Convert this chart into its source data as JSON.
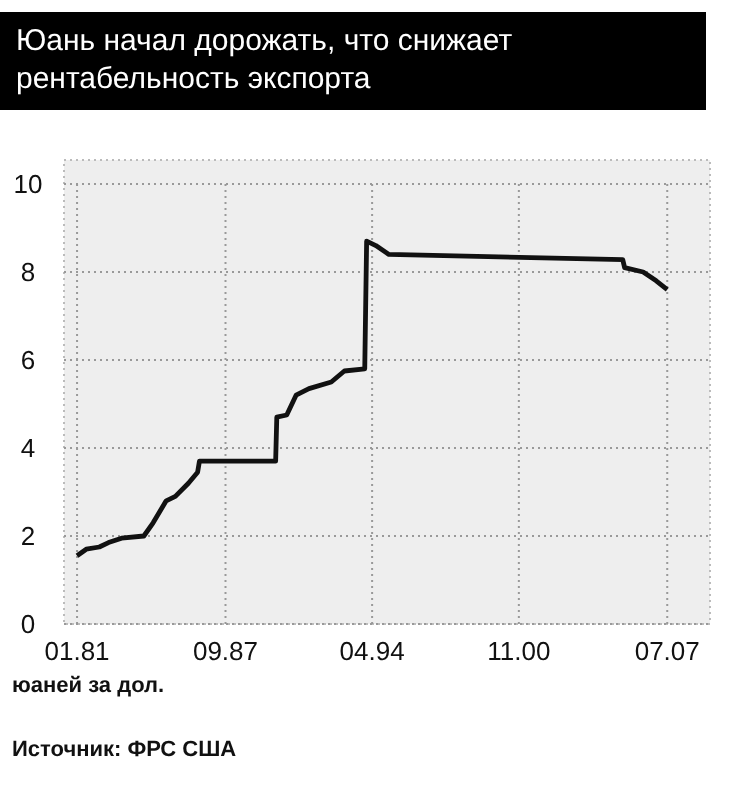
{
  "chart_data": {
    "type": "line",
    "title": "Юань начал дорожать, что снижает рентабельность экспорта",
    "ylabel": "юаней за дол.",
    "annotations": [
      "Источник: ФРС США"
    ],
    "x": [
      "1981-01",
      "1981-06",
      "1982-01",
      "1982-06",
      "1983-01",
      "1984-01",
      "1984-06",
      "1985-01",
      "1985-06",
      "1986-01",
      "1986-06",
      "1986-07",
      "1989-12",
      "1989-12-20",
      "1990-06",
      "1990-11",
      "1991-06",
      "1992-06",
      "1993-01",
      "1993-12",
      "1994-01",
      "1994-06",
      "1995-01",
      "2005-07",
      "2005-08",
      "2006-06",
      "2007-01",
      "2007-07"
    ],
    "series": [
      {
        "color": "#111111",
        "values": [
          1.55,
          1.7,
          1.75,
          1.85,
          1.95,
          2.0,
          2.3,
          2.8,
          2.9,
          3.2,
          3.45,
          3.7,
          3.7,
          4.7,
          4.75,
          5.2,
          5.35,
          5.5,
          5.75,
          5.8,
          8.7,
          8.6,
          8.4,
          8.28,
          8.1,
          8.0,
          7.8,
          7.6
        ]
      }
    ],
    "xlim": [
      "1980-06",
      "2009-06"
    ],
    "xticks": [
      {
        "value": "1981-01",
        "label": "01.81"
      },
      {
        "value": "1987-09",
        "label": "09.87"
      },
      {
        "value": "1994-04",
        "label": "04.94"
      },
      {
        "value": "2000-11",
        "label": "11.00"
      },
      {
        "value": "2007-07",
        "label": "07.07"
      }
    ],
    "ylim": [
      0,
      10
    ],
    "yticks": [
      0,
      2,
      4,
      6,
      8,
      10
    ],
    "grid": true,
    "line_style": "solid",
    "marker": "none"
  }
}
